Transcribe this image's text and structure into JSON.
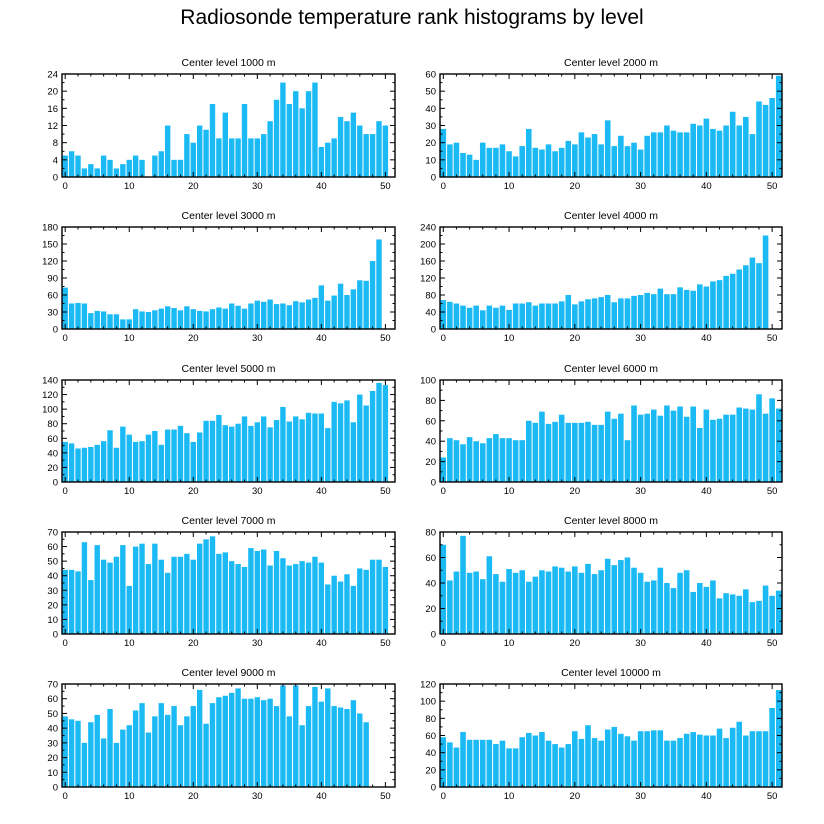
{
  "title": "Radiosonde temperature rank histograms by level",
  "colors": {
    "bar": "#1bbaf5",
    "axis": "#000000",
    "background": "#ffffff"
  },
  "chart_data": [
    {
      "type": "bar",
      "title": "Center level 1000 m",
      "xlabel": "",
      "ylabel": "",
      "xlim": [
        -0.5,
        51.5
      ],
      "ylim": [
        0,
        24
      ],
      "xticks": [
        0,
        10,
        20,
        30,
        40,
        50
      ],
      "yticks": [
        0,
        4,
        8,
        12,
        16,
        20,
        24
      ],
      "values": [
        5,
        6,
        5,
        2,
        3,
        2,
        5,
        4,
        2,
        3,
        4,
        5,
        4,
        0,
        5,
        6,
        12,
        4,
        4,
        10,
        8,
        12,
        11,
        17,
        9,
        15,
        9,
        9,
        17,
        9,
        9,
        10,
        13,
        18,
        22,
        17,
        20,
        16,
        20,
        22,
        7,
        8,
        9,
        14,
        13,
        15,
        12,
        10,
        10,
        13,
        12,
        0
      ]
    },
    {
      "type": "bar",
      "title": "Center level 2000 m",
      "xlabel": "",
      "ylabel": "",
      "xlim": [
        -0.5,
        51.5
      ],
      "ylim": [
        0,
        60
      ],
      "xticks": [
        0,
        10,
        20,
        30,
        40,
        50
      ],
      "yticks": [
        0,
        10,
        20,
        30,
        40,
        50,
        60
      ],
      "values": [
        28,
        19,
        20,
        14,
        13,
        10,
        20,
        17,
        17,
        19,
        15,
        12,
        18,
        28,
        17,
        16,
        19,
        15,
        17,
        21,
        19,
        26,
        23,
        25,
        19,
        33,
        18,
        24,
        18,
        20,
        16,
        24,
        26,
        26,
        30,
        27,
        26,
        26,
        31,
        30,
        34,
        28,
        27,
        30,
        38,
        30,
        35,
        25,
        44,
        42,
        46,
        59
      ]
    },
    {
      "type": "bar",
      "title": "Center level 3000 m",
      "xlabel": "",
      "ylabel": "",
      "xlim": [
        -0.5,
        51.5
      ],
      "ylim": [
        0,
        180
      ],
      "xticks": [
        0,
        10,
        20,
        30,
        40,
        50
      ],
      "yticks": [
        0,
        30,
        60,
        90,
        120,
        150,
        180
      ],
      "values": [
        73,
        45,
        46,
        45,
        28,
        32,
        31,
        26,
        26,
        17,
        17,
        35,
        31,
        30,
        33,
        36,
        40,
        37,
        33,
        40,
        35,
        32,
        31,
        35,
        38,
        36,
        45,
        41,
        36,
        45,
        50,
        48,
        52,
        44,
        45,
        42,
        49,
        47,
        52,
        55,
        77,
        50,
        59,
        80,
        60,
        70,
        86,
        85,
        120,
        158,
        0,
        0
      ]
    },
    {
      "type": "bar",
      "title": "Center level 4000 m",
      "xlabel": "",
      "ylabel": "",
      "xlim": [
        -0.5,
        51.5
      ],
      "ylim": [
        0,
        240
      ],
      "xticks": [
        0,
        10,
        20,
        30,
        40,
        50
      ],
      "yticks": [
        0,
        40,
        80,
        120,
        160,
        200,
        240
      ],
      "values": [
        68,
        64,
        60,
        55,
        50,
        55,
        44,
        55,
        50,
        55,
        45,
        60,
        60,
        63,
        55,
        60,
        60,
        60,
        65,
        80,
        58,
        65,
        70,
        72,
        75,
        80,
        63,
        72,
        72,
        78,
        80,
        85,
        82,
        95,
        82,
        82,
        98,
        92,
        90,
        105,
        100,
        112,
        115,
        125,
        130,
        140,
        150,
        168,
        155,
        220,
        0,
        0
      ]
    },
    {
      "type": "bar",
      "title": "Center level 5000 m",
      "xlabel": "",
      "ylabel": "",
      "xlim": [
        -0.5,
        51.5
      ],
      "ylim": [
        0,
        140
      ],
      "xticks": [
        0,
        10,
        20,
        30,
        40,
        50
      ],
      "yticks": [
        0,
        20,
        40,
        60,
        80,
        100,
        120,
        140
      ],
      "values": [
        55,
        53,
        46,
        47,
        48,
        51,
        56,
        71,
        47,
        76,
        65,
        55,
        56,
        65,
        70,
        51,
        72,
        72,
        77,
        67,
        55,
        68,
        84,
        84,
        92,
        78,
        76,
        80,
        90,
        77,
        82,
        90,
        75,
        85,
        103,
        83,
        90,
        86,
        95,
        94,
        94,
        74,
        110,
        108,
        112,
        82,
        120,
        105,
        125,
        136,
        133,
        0
      ]
    },
    {
      "type": "bar",
      "title": "Center level 6000 m",
      "xlabel": "",
      "ylabel": "",
      "xlim": [
        -0.5,
        51.5
      ],
      "ylim": [
        0,
        100
      ],
      "xticks": [
        0,
        10,
        20,
        30,
        40,
        50
      ],
      "yticks": [
        0,
        20,
        40,
        60,
        80,
        100
      ],
      "values": [
        24,
        43,
        41,
        37,
        44,
        40,
        38,
        43,
        47,
        43,
        43,
        41,
        41,
        60,
        58,
        69,
        57,
        59,
        66,
        58,
        58,
        58,
        59,
        56,
        56,
        69,
        62,
        67,
        41,
        75,
        66,
        67,
        71,
        65,
        75,
        70,
        74,
        64,
        74,
        53,
        71,
        61,
        62,
        66,
        66,
        73,
        72,
        71,
        86,
        67,
        82,
        72
      ]
    },
    {
      "type": "bar",
      "title": "Center level 7000 m",
      "xlabel": "",
      "ylabel": "",
      "xlim": [
        -0.5,
        51.5
      ],
      "ylim": [
        0,
        70
      ],
      "xticks": [
        0,
        10,
        20,
        30,
        40,
        50
      ],
      "yticks": [
        0,
        10,
        20,
        30,
        40,
        50,
        60,
        70
      ],
      "values": [
        44,
        44,
        43,
        63,
        37,
        61,
        51,
        49,
        53,
        61,
        33,
        60,
        62,
        48,
        62,
        51,
        42,
        53,
        53,
        55,
        51,
        62,
        65,
        67,
        55,
        56,
        50,
        48,
        46,
        59,
        57,
        58,
        47,
        57,
        52,
        47,
        48,
        50,
        49,
        53,
        49,
        34,
        40,
        36,
        41,
        33,
        45,
        44,
        51,
        51,
        46,
        0
      ]
    },
    {
      "type": "bar",
      "title": "Center level 8000 m",
      "xlabel": "",
      "ylabel": "",
      "xlim": [
        -0.5,
        51.5
      ],
      "ylim": [
        0,
        80
      ],
      "xticks": [
        0,
        10,
        20,
        30,
        40,
        50
      ],
      "yticks": [
        0,
        20,
        40,
        60,
        80
      ],
      "values": [
        70,
        42,
        49,
        77,
        48,
        49,
        43,
        61,
        47,
        41,
        51,
        48,
        50,
        41,
        45,
        50,
        49,
        53,
        52,
        49,
        53,
        48,
        55,
        47,
        50,
        59,
        54,
        58,
        60,
        52,
        48,
        41,
        42,
        52,
        40,
        36,
        48,
        50,
        33,
        40,
        37,
        42,
        28,
        32,
        31,
        30,
        35,
        25,
        26,
        38,
        30,
        34
      ]
    },
    {
      "type": "bar",
      "title": "Center level 9000 m",
      "xlabel": "",
      "ylabel": "",
      "xlim": [
        -0.5,
        51.5
      ],
      "ylim": [
        0,
        70
      ],
      "xticks": [
        0,
        10,
        20,
        30,
        40,
        50
      ],
      "yticks": [
        0,
        10,
        20,
        30,
        40,
        50,
        60,
        70
      ],
      "values": [
        48,
        46,
        45,
        30,
        44,
        49,
        33,
        53,
        30,
        39,
        42,
        52,
        57,
        37,
        48,
        57,
        49,
        55,
        42,
        48,
        55,
        66,
        43,
        57,
        61,
        62,
        64,
        67,
        60,
        60,
        61,
        59,
        60,
        55,
        69,
        48,
        69,
        42,
        55,
        68,
        58,
        67,
        55,
        54,
        53,
        59,
        50,
        44,
        0,
        0,
        0,
        0
      ]
    },
    {
      "type": "bar",
      "title": "Center level 10000 m",
      "xlabel": "",
      "ylabel": "",
      "xlim": [
        -0.5,
        51.5
      ],
      "ylim": [
        0,
        120
      ],
      "xticks": [
        0,
        10,
        20,
        30,
        40,
        50
      ],
      "yticks": [
        0,
        20,
        40,
        60,
        80,
        100,
        120
      ],
      "values": [
        58,
        52,
        46,
        64,
        55,
        55,
        55,
        55,
        50,
        54,
        45,
        45,
        58,
        63,
        60,
        64,
        54,
        50,
        46,
        50,
        65,
        56,
        72,
        57,
        54,
        67,
        70,
        62,
        59,
        54,
        65,
        65,
        66,
        66,
        54,
        54,
        57,
        62,
        64,
        61,
        60,
        60,
        68,
        57,
        69,
        76,
        60,
        65,
        65,
        65,
        92,
        113
      ]
    }
  ]
}
